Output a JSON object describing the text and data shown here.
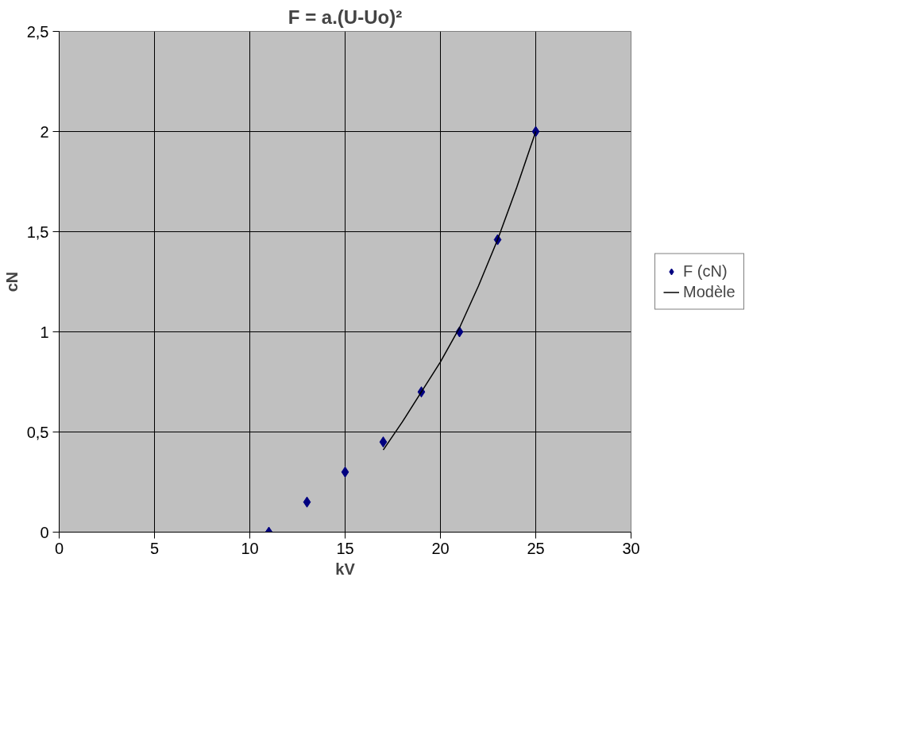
{
  "chart_data": {
    "type": "scatter",
    "title": "F = a.(U-Uo)²",
    "xlabel": "kV",
    "ylabel": "cN",
    "xlim": [
      0,
      30
    ],
    "xticks": [
      0,
      5,
      10,
      15,
      20,
      25,
      30
    ],
    "ylim": [
      0,
      2.5
    ],
    "yticks": [
      0,
      {
        "value": 0.5,
        "label": "0,5"
      },
      1,
      {
        "value": 1.5,
        "label": "1,5"
      },
      2,
      {
        "value": 2.5,
        "label": "2,5"
      }
    ],
    "grid": true,
    "legend": "right",
    "series": [
      {
        "name": "F (cN)",
        "marker": "diamond",
        "color": "#000080",
        "x": [
          11,
          13,
          15,
          17,
          19,
          21,
          23,
          25
        ],
        "values": [
          0,
          0.15,
          0.3,
          0.45,
          0.7,
          1.0,
          1.46,
          2.0
        ]
      },
      {
        "name": "Modèle",
        "type": "line",
        "color": "#000000",
        "x": [
          17,
          18,
          19,
          20,
          21,
          22,
          23,
          24,
          25
        ],
        "values": [
          0.41,
          0.55,
          0.7,
          0.85,
          1.02,
          1.23,
          1.46,
          1.72,
          2.0
        ]
      }
    ]
  }
}
